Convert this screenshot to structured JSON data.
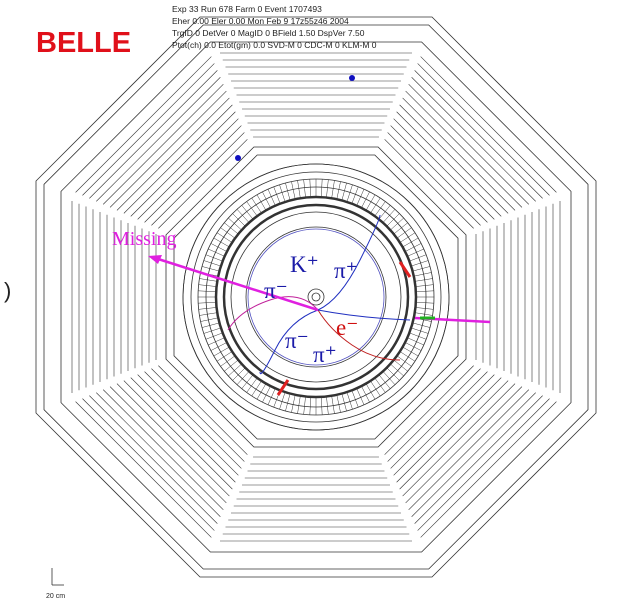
{
  "logo": "BELLE",
  "header": {
    "lines": [
      "Exp    33  Run      678  Farm    0  Event  1707493",
      "Eher  0.00  Eler  0.00    Mon Feb  9 17z55z46 2004",
      "TrgID   0 DetVer     0  MagID   0  BField   1.50  DspVer   7.50",
      "Ptot(ch)    0.0  Etot(gm)    0.0 SVD-M    0 CDC-M    0 KLM-M    0"
    ]
  },
  "labels": {
    "missing": "Missing",
    "particles": [
      "π⁻",
      "K⁺",
      "π⁺",
      "e⁻",
      "π⁻",
      "π⁺"
    ]
  },
  "scale": "20 cm",
  "side_mark": ")"
}
